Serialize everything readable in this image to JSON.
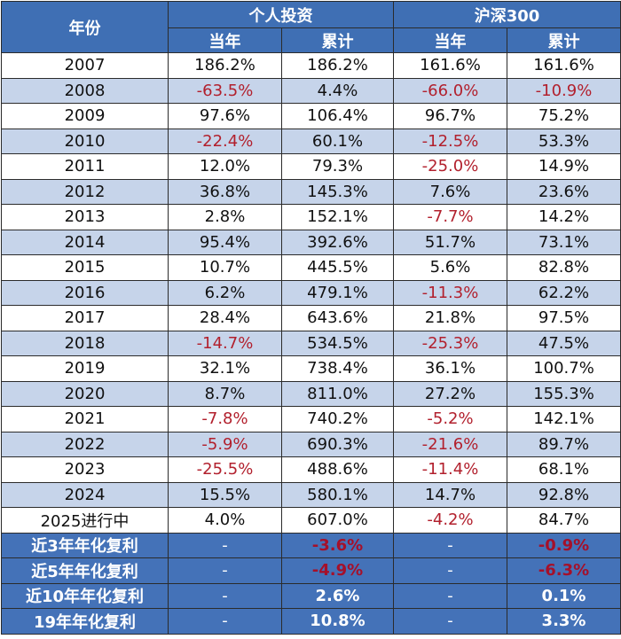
{
  "header": {
    "year": "年份",
    "group_personal": "个人投资",
    "group_index": "沪深300",
    "sub_year": "当年",
    "sub_cum": "累计"
  },
  "rows": [
    {
      "year": "2007",
      "p_year": "186.2%",
      "p_cum": "186.2%",
      "i_year": "161.6%",
      "i_cum": "161.6%"
    },
    {
      "year": "2008",
      "p_year": "-63.5%",
      "p_cum": "4.4%",
      "i_year": "-66.0%",
      "i_cum": "-10.9%"
    },
    {
      "year": "2009",
      "p_year": "97.6%",
      "p_cum": "106.4%",
      "i_year": "96.7%",
      "i_cum": "75.2%"
    },
    {
      "year": "2010",
      "p_year": "-22.4%",
      "p_cum": "60.1%",
      "i_year": "-12.5%",
      "i_cum": "53.3%"
    },
    {
      "year": "2011",
      "p_year": "12.0%",
      "p_cum": "79.3%",
      "i_year": "-25.0%",
      "i_cum": "14.9%"
    },
    {
      "year": "2012",
      "p_year": "36.8%",
      "p_cum": "145.3%",
      "i_year": "7.6%",
      "i_cum": "23.6%"
    },
    {
      "year": "2013",
      "p_year": "2.8%",
      "p_cum": "152.1%",
      "i_year": "-7.7%",
      "i_cum": "14.2%"
    },
    {
      "year": "2014",
      "p_year": "95.4%",
      "p_cum": "392.6%",
      "i_year": "51.7%",
      "i_cum": "73.1%"
    },
    {
      "year": "2015",
      "p_year": "10.7%",
      "p_cum": "445.5%",
      "i_year": "5.6%",
      "i_cum": "82.8%"
    },
    {
      "year": "2016",
      "p_year": "6.2%",
      "p_cum": "479.1%",
      "i_year": "-11.3%",
      "i_cum": "62.2%"
    },
    {
      "year": "2017",
      "p_year": "28.4%",
      "p_cum": "643.6%",
      "i_year": "21.8%",
      "i_cum": "97.5%"
    },
    {
      "year": "2018",
      "p_year": "-14.7%",
      "p_cum": "534.5%",
      "i_year": "-25.3%",
      "i_cum": "47.5%"
    },
    {
      "year": "2019",
      "p_year": "32.1%",
      "p_cum": "738.4%",
      "i_year": "36.1%",
      "i_cum": "100.7%"
    },
    {
      "year": "2020",
      "p_year": "8.7%",
      "p_cum": "811.0%",
      "i_year": "27.2%",
      "i_cum": "155.3%"
    },
    {
      "year": "2021",
      "p_year": "-7.8%",
      "p_cum": "740.2%",
      "i_year": "-5.2%",
      "i_cum": "142.1%"
    },
    {
      "year": "2022",
      "p_year": "-5.9%",
      "p_cum": "690.3%",
      "i_year": "-21.6%",
      "i_cum": "89.7%"
    },
    {
      "year": "2023",
      "p_year": "-25.5%",
      "p_cum": "488.6%",
      "i_year": "-11.4%",
      "i_cum": "68.1%"
    },
    {
      "year": "2024",
      "p_year": "15.5%",
      "p_cum": "580.1%",
      "i_year": "14.7%",
      "i_cum": "92.8%"
    },
    {
      "year": "2025进行中",
      "p_year": "4.0%",
      "p_cum": "607.0%",
      "i_year": "-4.2%",
      "i_cum": "84.7%"
    }
  ],
  "summary": [
    {
      "label": "近3年年化复利",
      "p_year": "-",
      "p_cum": "-3.6%",
      "i_year": "-",
      "i_cum": "-0.9%"
    },
    {
      "label": "近5年年化复利",
      "p_year": "-",
      "p_cum": "-4.9%",
      "i_year": "-",
      "i_cum": "-6.3%"
    },
    {
      "label": "近10年年化复利",
      "p_year": "-",
      "p_cum": "2.6%",
      "i_year": "-",
      "i_cum": "0.1%"
    },
    {
      "label": "19年年化复利",
      "p_year": "-",
      "p_cum": "10.8%",
      "i_year": "-",
      "i_cum": "3.3%"
    }
  ],
  "colors": {
    "header_bg": "#3f6fb4",
    "stripe": "#c6d4ea",
    "negative_text": "#b2202d"
  }
}
